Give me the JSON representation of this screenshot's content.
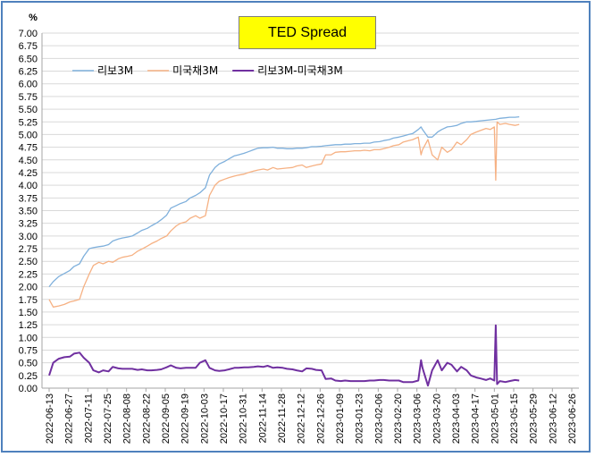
{
  "chart_data": {
    "type": "line",
    "title": "TED Spread",
    "ylabel": "%",
    "xlabel": "",
    "ylim": [
      0,
      7
    ],
    "y_ticks": [
      "0.00",
      "0.25",
      "0.50",
      "0.75",
      "1.00",
      "1.25",
      "1.50",
      "1.75",
      "2.00",
      "2.25",
      "2.50",
      "2.75",
      "3.00",
      "3.25",
      "3.50",
      "3.75",
      "4.00",
      "4.25",
      "4.50",
      "4.75",
      "5.00",
      "5.25",
      "5.50",
      "5.75",
      "6.00",
      "6.25",
      "6.50",
      "6.75",
      "7.00"
    ],
    "x_ticks": [
      "2022-06-13",
      "2022-06-27",
      "2022-07-11",
      "2022-07-25",
      "2022-08-08",
      "2022-08-22",
      "2022-09-05",
      "2022-09-19",
      "2022-10-03",
      "2022-10-17",
      "2022-10-31",
      "2022-11-14",
      "2022-11-28",
      "2022-12-12",
      "2022-12-26",
      "2023-01-09",
      "2023-01-23",
      "2023-02-06",
      "2023-02-20",
      "2023-03-06",
      "2023-03-20",
      "2023-04-03",
      "2023-04-17",
      "2023-05-01",
      "2023-05-15",
      "2023-05-29",
      "2023-06-12",
      "2023-06-26"
    ],
    "grid": true,
    "legend_position": "top-left",
    "series": [
      {
        "name": "리보3M",
        "color": "#7fb0dc",
        "x": [
          "2022-06-13",
          "2022-06-16",
          "2022-06-20",
          "2022-06-24",
          "2022-06-28",
          "2022-07-01",
          "2022-07-05",
          "2022-07-08",
          "2022-07-12",
          "2022-07-15",
          "2022-07-19",
          "2022-07-22",
          "2022-07-26",
          "2022-07-29",
          "2022-08-02",
          "2022-08-05",
          "2022-08-09",
          "2022-08-12",
          "2022-08-16",
          "2022-08-19",
          "2022-08-23",
          "2022-08-26",
          "2022-08-30",
          "2022-09-02",
          "2022-09-06",
          "2022-09-09",
          "2022-09-13",
          "2022-09-16",
          "2022-09-20",
          "2022-09-23",
          "2022-09-27",
          "2022-09-30",
          "2022-10-04",
          "2022-10-07",
          "2022-10-11",
          "2022-10-14",
          "2022-10-18",
          "2022-10-21",
          "2022-10-25",
          "2022-10-28",
          "2022-11-01",
          "2022-11-04",
          "2022-11-08",
          "2022-11-11",
          "2022-11-15",
          "2022-11-18",
          "2022-11-22",
          "2022-11-25",
          "2022-11-29",
          "2022-12-02",
          "2022-12-06",
          "2022-12-09",
          "2022-12-13",
          "2022-12-16",
          "2022-12-20",
          "2022-12-23",
          "2022-12-27",
          "2022-12-30",
          "2023-01-03",
          "2023-01-06",
          "2023-01-10",
          "2023-01-13",
          "2023-01-17",
          "2023-01-20",
          "2023-01-24",
          "2023-01-27",
          "2023-01-31",
          "2023-02-03",
          "2023-02-07",
          "2023-02-10",
          "2023-02-14",
          "2023-02-17",
          "2023-02-21",
          "2023-02-24",
          "2023-02-28",
          "2023-03-03",
          "2023-03-07",
          "2023-03-09",
          "2023-03-10",
          "2023-03-14",
          "2023-03-17",
          "2023-03-21",
          "2023-03-24",
          "2023-03-28",
          "2023-03-31",
          "2023-04-04",
          "2023-04-07",
          "2023-04-11",
          "2023-04-14",
          "2023-04-18",
          "2023-04-21",
          "2023-04-25",
          "2023-04-28",
          "2023-05-02",
          "2023-05-05",
          "2023-05-09",
          "2023-05-12",
          "2023-05-16",
          "2023-05-19"
        ],
        "values": [
          2.0,
          2.1,
          2.2,
          2.26,
          2.32,
          2.4,
          2.45,
          2.6,
          2.75,
          2.77,
          2.79,
          2.8,
          2.83,
          2.9,
          2.94,
          2.96,
          2.98,
          3.0,
          3.06,
          3.11,
          3.15,
          3.2,
          3.26,
          3.32,
          3.41,
          3.55,
          3.6,
          3.64,
          3.68,
          3.75,
          3.8,
          3.85,
          3.95,
          4.2,
          4.35,
          4.42,
          4.47,
          4.52,
          4.58,
          4.6,
          4.63,
          4.66,
          4.7,
          4.73,
          4.74,
          4.74,
          4.75,
          4.73,
          4.73,
          4.72,
          4.72,
          4.73,
          4.73,
          4.74,
          4.76,
          4.76,
          4.77,
          4.78,
          4.79,
          4.8,
          4.8,
          4.81,
          4.81,
          4.82,
          4.82,
          4.83,
          4.83,
          4.85,
          4.86,
          4.88,
          4.9,
          4.93,
          4.95,
          4.97,
          5.0,
          5.02,
          5.1,
          5.15,
          5.1,
          4.95,
          4.95,
          5.05,
          5.1,
          5.15,
          5.16,
          5.18,
          5.22,
          5.25,
          5.25,
          5.26,
          5.27,
          5.28,
          5.29,
          5.3,
          5.32,
          5.33,
          5.34,
          5.34,
          5.35
        ]
      },
      {
        "name": "미국채3M",
        "color": "#f6b183",
        "x": [
          "2022-06-13",
          "2022-06-16",
          "2022-06-20",
          "2022-06-24",
          "2022-06-28",
          "2022-07-01",
          "2022-07-05",
          "2022-07-08",
          "2022-07-12",
          "2022-07-15",
          "2022-07-19",
          "2022-07-22",
          "2022-07-26",
          "2022-07-29",
          "2022-08-02",
          "2022-08-05",
          "2022-08-09",
          "2022-08-12",
          "2022-08-16",
          "2022-08-19",
          "2022-08-23",
          "2022-08-26",
          "2022-08-30",
          "2022-09-02",
          "2022-09-06",
          "2022-09-09",
          "2022-09-13",
          "2022-09-16",
          "2022-09-20",
          "2022-09-23",
          "2022-09-27",
          "2022-09-30",
          "2022-10-04",
          "2022-10-07",
          "2022-10-11",
          "2022-10-14",
          "2022-10-18",
          "2022-10-21",
          "2022-10-25",
          "2022-10-28",
          "2022-11-01",
          "2022-11-04",
          "2022-11-08",
          "2022-11-11",
          "2022-11-15",
          "2022-11-18",
          "2022-11-22",
          "2022-11-25",
          "2022-11-29",
          "2022-12-02",
          "2022-12-06",
          "2022-12-09",
          "2022-12-13",
          "2022-12-16",
          "2022-12-20",
          "2022-12-23",
          "2022-12-27",
          "2022-12-30",
          "2023-01-03",
          "2023-01-06",
          "2023-01-10",
          "2023-01-13",
          "2023-01-17",
          "2023-01-20",
          "2023-01-24",
          "2023-01-27",
          "2023-01-31",
          "2023-02-03",
          "2023-02-07",
          "2023-02-10",
          "2023-02-14",
          "2023-02-17",
          "2023-02-21",
          "2023-02-24",
          "2023-02-28",
          "2023-03-03",
          "2023-03-07",
          "2023-03-09",
          "2023-03-10",
          "2023-03-14",
          "2023-03-17",
          "2023-03-21",
          "2023-03-24",
          "2023-03-28",
          "2023-03-31",
          "2023-04-04",
          "2023-04-07",
          "2023-04-11",
          "2023-04-14",
          "2023-04-18",
          "2023-04-21",
          "2023-04-25",
          "2023-04-28",
          "2023-05-01",
          "2023-05-02",
          "2023-05-03",
          "2023-05-05",
          "2023-05-09",
          "2023-05-12",
          "2023-05-16",
          "2023-05-19"
        ],
        "values": [
          1.75,
          1.6,
          1.62,
          1.65,
          1.7,
          1.72,
          1.75,
          2.0,
          2.25,
          2.42,
          2.48,
          2.45,
          2.5,
          2.48,
          2.55,
          2.58,
          2.6,
          2.62,
          2.7,
          2.74,
          2.8,
          2.85,
          2.9,
          2.95,
          3.0,
          3.1,
          3.2,
          3.25,
          3.28,
          3.35,
          3.4,
          3.35,
          3.4,
          3.8,
          4.0,
          4.08,
          4.12,
          4.15,
          4.18,
          4.2,
          4.22,
          4.25,
          4.28,
          4.3,
          4.32,
          4.3,
          4.35,
          4.32,
          4.33,
          4.34,
          4.35,
          4.38,
          4.4,
          4.35,
          4.38,
          4.4,
          4.42,
          4.6,
          4.6,
          4.65,
          4.66,
          4.66,
          4.67,
          4.68,
          4.68,
          4.69,
          4.68,
          4.7,
          4.7,
          4.72,
          4.75,
          4.78,
          4.8,
          4.85,
          4.88,
          4.9,
          4.95,
          4.6,
          4.7,
          4.9,
          4.6,
          4.5,
          4.75,
          4.65,
          4.7,
          4.85,
          4.8,
          4.9,
          5.0,
          5.05,
          5.08,
          5.12,
          5.1,
          5.15,
          4.1,
          5.25,
          5.2,
          5.22,
          5.2,
          5.18,
          5.2
        ]
      },
      {
        "name": "리보3M-미국채3M",
        "color": "#7030a0",
        "x": [
          "2022-06-13",
          "2022-06-16",
          "2022-06-20",
          "2022-06-24",
          "2022-06-28",
          "2022-07-01",
          "2022-07-05",
          "2022-07-08",
          "2022-07-12",
          "2022-07-15",
          "2022-07-19",
          "2022-07-22",
          "2022-07-26",
          "2022-07-29",
          "2022-08-02",
          "2022-08-05",
          "2022-08-09",
          "2022-08-12",
          "2022-08-16",
          "2022-08-19",
          "2022-08-23",
          "2022-08-26",
          "2022-08-30",
          "2022-09-02",
          "2022-09-06",
          "2022-09-09",
          "2022-09-13",
          "2022-09-16",
          "2022-09-20",
          "2022-09-23",
          "2022-09-27",
          "2022-09-30",
          "2022-10-04",
          "2022-10-07",
          "2022-10-11",
          "2022-10-14",
          "2022-10-18",
          "2022-10-21",
          "2022-10-25",
          "2022-10-28",
          "2022-11-01",
          "2022-11-04",
          "2022-11-08",
          "2022-11-11",
          "2022-11-15",
          "2022-11-18",
          "2022-11-22",
          "2022-11-25",
          "2022-11-29",
          "2022-12-02",
          "2022-12-06",
          "2022-12-09",
          "2022-12-13",
          "2022-12-16",
          "2022-12-20",
          "2022-12-23",
          "2022-12-27",
          "2022-12-30",
          "2023-01-03",
          "2023-01-06",
          "2023-01-10",
          "2023-01-13",
          "2023-01-17",
          "2023-01-20",
          "2023-01-24",
          "2023-01-27",
          "2023-01-31",
          "2023-02-03",
          "2023-02-07",
          "2023-02-10",
          "2023-02-14",
          "2023-02-17",
          "2023-02-21",
          "2023-02-24",
          "2023-02-28",
          "2023-03-03",
          "2023-03-07",
          "2023-03-09",
          "2023-03-10",
          "2023-03-14",
          "2023-03-17",
          "2023-03-21",
          "2023-03-24",
          "2023-03-28",
          "2023-03-31",
          "2023-04-04",
          "2023-04-07",
          "2023-04-11",
          "2023-04-14",
          "2023-04-18",
          "2023-04-21",
          "2023-04-25",
          "2023-04-28",
          "2023-05-01",
          "2023-05-02",
          "2023-05-03",
          "2023-05-05",
          "2023-05-09",
          "2023-05-12",
          "2023-05-16",
          "2023-05-19"
        ],
        "values": [
          0.25,
          0.5,
          0.58,
          0.61,
          0.62,
          0.68,
          0.7,
          0.6,
          0.5,
          0.35,
          0.31,
          0.35,
          0.33,
          0.42,
          0.39,
          0.38,
          0.38,
          0.38,
          0.36,
          0.37,
          0.35,
          0.35,
          0.36,
          0.37,
          0.41,
          0.45,
          0.4,
          0.39,
          0.4,
          0.4,
          0.4,
          0.5,
          0.55,
          0.4,
          0.35,
          0.34,
          0.35,
          0.37,
          0.4,
          0.4,
          0.41,
          0.41,
          0.42,
          0.43,
          0.42,
          0.44,
          0.4,
          0.41,
          0.4,
          0.38,
          0.37,
          0.35,
          0.33,
          0.39,
          0.38,
          0.36,
          0.35,
          0.18,
          0.19,
          0.15,
          0.14,
          0.15,
          0.14,
          0.14,
          0.14,
          0.14,
          0.15,
          0.15,
          0.16,
          0.16,
          0.15,
          0.15,
          0.15,
          0.12,
          0.12,
          0.12,
          0.15,
          0.55,
          0.4,
          0.05,
          0.35,
          0.55,
          0.35,
          0.5,
          0.46,
          0.33,
          0.42,
          0.35,
          0.25,
          0.21,
          0.19,
          0.16,
          0.19,
          0.15,
          1.24,
          0.08,
          0.14,
          0.12,
          0.14,
          0.16,
          0.15
        ]
      }
    ]
  }
}
